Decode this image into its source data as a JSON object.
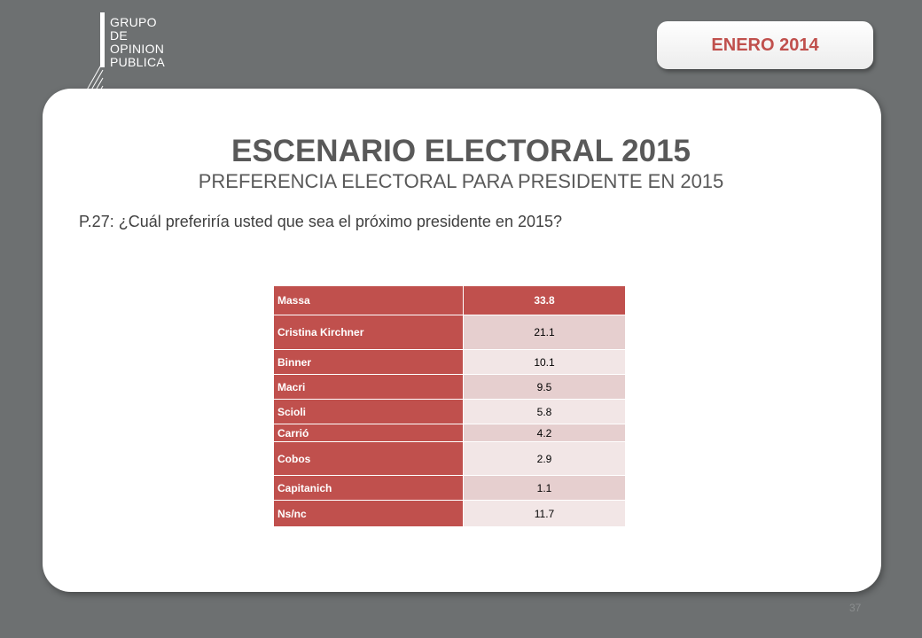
{
  "logo": {
    "lines": [
      "GRUPO",
      "DE",
      "OPINION",
      "PUBLICA"
    ]
  },
  "date_badge": "ENERO 2014",
  "title": "ESCENARIO ELECTORAL 2015",
  "subtitle": "PREFERENCIA ELECTORAL PARA PRESIDENTE EN 2015",
  "question": "P.27: ¿Cuál preferiría usted que sea el próximo presidente en 2015?",
  "colors": {
    "accent": "#c0504d",
    "background": "#6d7071"
  },
  "table": {
    "rows": [
      {
        "label": "Massa",
        "value": "33.8"
      },
      {
        "label": "Cristina Kirchner",
        "value": "21.1"
      },
      {
        "label": "Binner",
        "value": "10.1"
      },
      {
        "label": "Macri",
        "value": "9.5"
      },
      {
        "label": "Scioli",
        "value": "5.8"
      },
      {
        "label": "Carrió",
        "value": "4.2"
      },
      {
        "label": "Cobos",
        "value": "2.9"
      },
      {
        "label": "Capitanich",
        "value": "1.1"
      },
      {
        "label": "Ns/nc",
        "value": "11.7"
      }
    ]
  },
  "page_number": "37"
}
